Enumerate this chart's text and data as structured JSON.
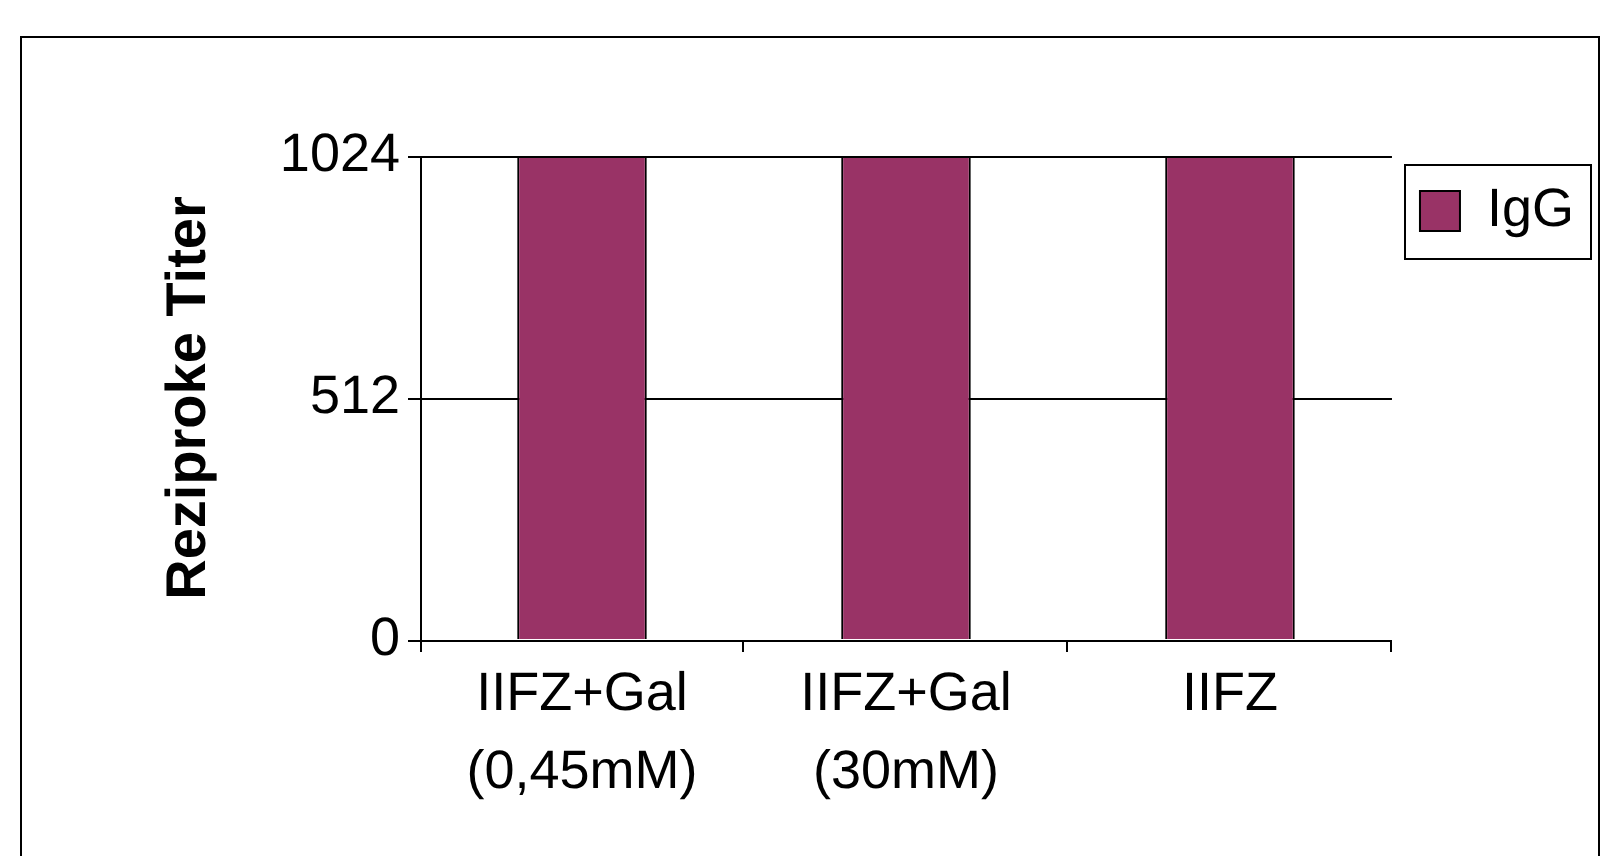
{
  "chart_data": {
    "type": "bar",
    "ylabel": "Reziproke Titer",
    "categories": [
      "IIFZ+Gal (0,45mM)",
      "IIFZ+Gal (30mM)",
      "IIFZ"
    ],
    "series": [
      {
        "name": "IgG",
        "color": "#993366",
        "values": [
          1024,
          1024,
          1024
        ]
      }
    ],
    "ylim": [
      0,
      1024
    ],
    "yticks": [
      0,
      512,
      1024
    ],
    "grid": "y",
    "legend": "right"
  }
}
